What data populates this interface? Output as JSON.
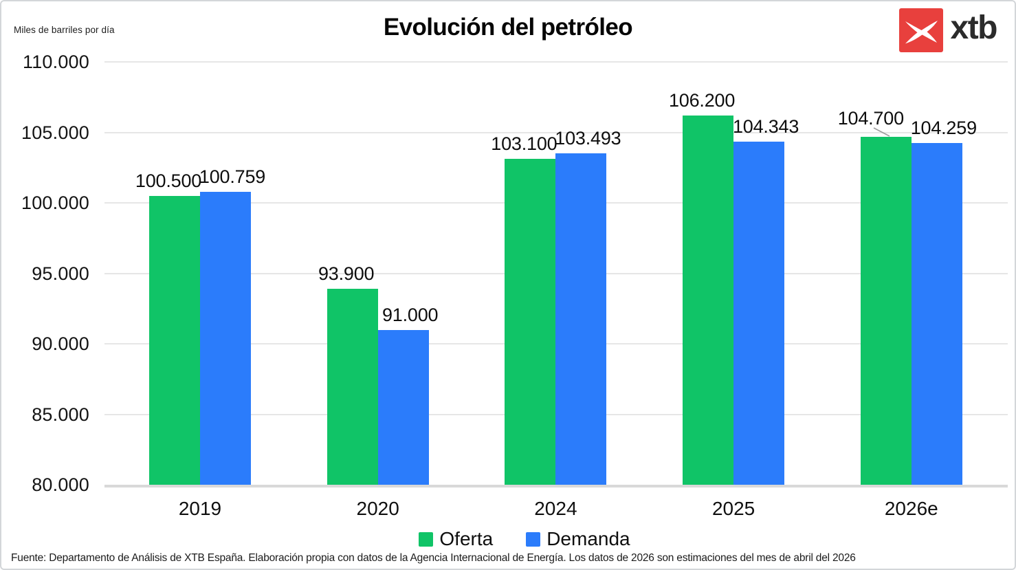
{
  "chart": {
    "title": "Evolución del petróleo",
    "y_axis_unit": "Miles de barriles por día"
  },
  "logo": {
    "text": "xtb",
    "red": "#e8403d"
  },
  "chart_data": {
    "type": "bar",
    "title": "Evolución del petróleo",
    "xlabel": "",
    "ylabel": "Miles de barriles por día",
    "categories": [
      "2019",
      "2020",
      "2024",
      "2025",
      "2026e"
    ],
    "series": [
      {
        "name": "Oferta",
        "color": "#10c467",
        "values": [
          100500,
          93900,
          103100,
          106200,
          104700
        ],
        "labels": [
          "100.500",
          "93.900",
          "103.100",
          "106.200",
          "104.700"
        ]
      },
      {
        "name": "Demanda",
        "color": "#2b7cfb",
        "values": [
          100759,
          91000,
          103493,
          104343,
          104259
        ],
        "labels": [
          "100.759",
          "91.000",
          "103.493",
          "104.343",
          "104.259"
        ]
      }
    ],
    "ylim": [
      80000,
      110000
    ],
    "ytick_step": 5000,
    "ytick_labels": [
      "80.000",
      "85.000",
      "90.000",
      "95.000",
      "100.000",
      "105.000",
      "110.000"
    ],
    "grid": "horizontal",
    "legend_position": "bottom",
    "label_leader_line": {
      "series": "Oferta",
      "category": "2026e"
    }
  },
  "legend": {
    "items": [
      {
        "label": "Oferta",
        "color": "#10c467"
      },
      {
        "label": "Demanda",
        "color": "#2b7cfb"
      }
    ]
  },
  "footer": {
    "source": "Fuente: Departamento de Análisis de XTB España. Elaboración propia con datos de la Agencia Internacional de Energía. Los datos de 2026 son estimaciones del mes de abril del 2026"
  },
  "colors": {
    "oferta": "#10c467",
    "demanda": "#2b7cfb",
    "gridline": "#e6e6e6",
    "axis_line": "#d9d9d9",
    "logo_red": "#e8403d",
    "text": "#111111"
  }
}
